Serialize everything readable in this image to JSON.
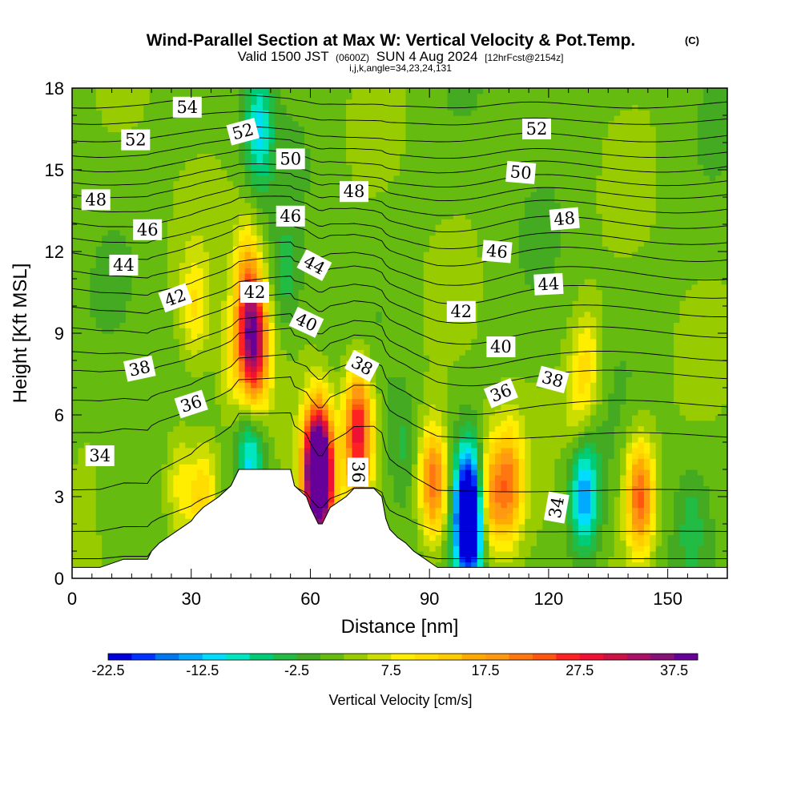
{
  "header": {
    "title": "Wind-Parallel Section at Max W: Vertical Velocity & Pot.Temp.",
    "copyright": "(C)",
    "valid_prefix": "Valid 1500 JST",
    "valid_utc": "(0600Z)",
    "valid_date": "SUN 4 Aug 2024",
    "forecast": "[12hrFcst@2154z]",
    "indices": "i,j,k,angle=34,23,24,131"
  },
  "chart_data": {
    "type": "heatmap",
    "title": "Wind-Parallel Section at Max W: Vertical Velocity & Pot.Temp.",
    "xlabel": "Distance [nm]",
    "ylabel": "Height [Kft MSL]",
    "xlim": [
      0,
      165
    ],
    "ylim": [
      0,
      18
    ],
    "x_ticks": [
      0,
      30,
      60,
      90,
      120,
      150
    ],
    "y_ticks": [
      0,
      3,
      6,
      9,
      12,
      15,
      18
    ],
    "colorbar": {
      "title": "Vertical Velocity [cm/s]",
      "levels": [
        -22.5,
        -20,
        -17.5,
        -15,
        -12.5,
        -10,
        -7.5,
        -5,
        -2.5,
        0,
        2.5,
        5,
        7.5,
        10,
        12.5,
        15,
        17.5,
        20,
        22.5,
        25,
        27.5,
        30,
        32.5,
        35,
        37.5,
        40
      ],
      "tick_labels": [
        "-22.5",
        "-12.5",
        "-2.5",
        "7.5",
        "17.5",
        "27.5",
        "37.5"
      ],
      "tick_values": [
        -22.5,
        -12.5,
        -2.5,
        7.5,
        17.5,
        27.5,
        37.5
      ],
      "colors": [
        "#0000dd",
        "#0033ff",
        "#0077ee",
        "#00aaff",
        "#00ddff",
        "#00e6c0",
        "#00cc77",
        "#22bb44",
        "#44aa22",
        "#66bb11",
        "#99cc00",
        "#ccdd00",
        "#ffee00",
        "#ffdd00",
        "#ffcc00",
        "#ffaa00",
        "#ff9911",
        "#ff7711",
        "#ff5511",
        "#ff2222",
        "#ee1133",
        "#cc1144",
        "#aa1166",
        "#881177",
        "#660099"
      ]
    },
    "background_w": 1.5,
    "w_features": [
      {
        "x": 45,
        "y": 9.5,
        "w": 22
      },
      {
        "x": 46,
        "y": 8.0,
        "w": 20
      },
      {
        "x": 44,
        "y": 11.5,
        "w": 8
      },
      {
        "x": 40,
        "y": 8.0,
        "w": 6
      },
      {
        "x": 31,
        "y": 10.0,
        "w": 8
      },
      {
        "x": 33,
        "y": 3.0,
        "w": 12
      },
      {
        "x": 27,
        "y": 3.5,
        "w": 8
      },
      {
        "x": 62,
        "y": 4.5,
        "w": 38
      },
      {
        "x": 62,
        "y": 3.0,
        "w": 30
      },
      {
        "x": 72,
        "y": 6.0,
        "w": 18
      },
      {
        "x": 72,
        "y": 4.5,
        "w": 14
      },
      {
        "x": 91,
        "y": 3.5,
        "w": 22
      },
      {
        "x": 110,
        "y": 3.5,
        "w": 17
      },
      {
        "x": 105,
        "y": 3.0,
        "w": 15
      },
      {
        "x": 143,
        "y": 3.0,
        "w": 22
      },
      {
        "x": 130,
        "y": 8.0,
        "w": 8
      },
      {
        "x": 127,
        "y": 6.5,
        "w": 6
      },
      {
        "x": 100,
        "y": 3.0,
        "w": -22
      },
      {
        "x": 100,
        "y": 1.5,
        "w": -20
      },
      {
        "x": 129,
        "y": 3.0,
        "w": -16
      },
      {
        "x": 45,
        "y": 4.5,
        "w": -14
      },
      {
        "x": 47,
        "y": 16.5,
        "w": -12
      },
      {
        "x": 54,
        "y": 11.0,
        "w": -5
      },
      {
        "x": 83,
        "y": 5.0,
        "w": -4
      },
      {
        "x": 156,
        "y": 2.0,
        "w": -4
      },
      {
        "x": 10,
        "y": 3.0,
        "w": -3
      }
    ],
    "terrain": {
      "x": [
        0,
        7,
        13,
        19,
        20,
        22,
        25,
        28,
        30,
        31,
        33,
        35,
        37,
        40,
        42,
        49,
        55,
        56,
        59,
        60,
        62,
        63,
        65,
        69,
        71,
        76,
        78,
        79,
        80,
        82,
        84,
        86,
        88,
        92,
        165
      ],
      "height": [
        0.4,
        0.4,
        0.7,
        0.7,
        1.0,
        1.3,
        1.6,
        1.9,
        2.1,
        2.3,
        2.6,
        2.8,
        3.0,
        3.4,
        4.0,
        4.0,
        4.0,
        3.4,
        3.0,
        2.6,
        2.0,
        2.0,
        2.6,
        3.0,
        3.3,
        3.3,
        3.0,
        2.2,
        1.8,
        1.5,
        1.3,
        1.0,
        0.8,
        0.4,
        0.4
      ]
    },
    "theta_contours": [
      {
        "theta": 33,
        "h": 0.6,
        "terrain": 0.3,
        "wave": 0.0
      },
      {
        "theta": 34,
        "h": 1.5,
        "terrain": 0.55,
        "wave": 0.05
      },
      {
        "theta": 35,
        "h": 2.9,
        "terrain": 0.8,
        "wave": 0.1
      },
      {
        "theta": 36,
        "h": 5.0,
        "terrain": 0.6,
        "wave": 0.15
      },
      {
        "theta": 37,
        "h": 6.2,
        "terrain": 0.5,
        "wave": 0.15
      },
      {
        "theta": 38,
        "h": 7.3,
        "terrain": 0.45,
        "wave": 0.15
      },
      {
        "theta": 39,
        "h": 8.0,
        "terrain": 0.4,
        "wave": 0.15
      },
      {
        "theta": 40,
        "h": 8.9,
        "terrain": 0.35,
        "wave": 0.15
      },
      {
        "theta": 41,
        "h": 9.7,
        "terrain": 0.3,
        "wave": 0.15
      },
      {
        "theta": 42,
        "h": 10.4,
        "terrain": 0.3,
        "wave": 0.15
      },
      {
        "theta": 43,
        "h": 11.1,
        "terrain": 0.25,
        "wave": 0.15
      },
      {
        "theta": 44,
        "h": 11.8,
        "terrain": 0.25,
        "wave": 0.15
      },
      {
        "theta": 45,
        "h": 12.4,
        "terrain": 0.2,
        "wave": 0.12
      },
      {
        "theta": 46,
        "h": 13.0,
        "terrain": 0.2,
        "wave": 0.12
      },
      {
        "theta": 47,
        "h": 13.6,
        "terrain": 0.15,
        "wave": 0.12
      },
      {
        "theta": 48,
        "h": 14.1,
        "terrain": 0.15,
        "wave": 0.1
      },
      {
        "theta": 49,
        "h": 14.6,
        "terrain": 0.1,
        "wave": 0.1
      },
      {
        "theta": 50,
        "h": 15.1,
        "terrain": 0.1,
        "wave": 0.1
      },
      {
        "theta": 51,
        "h": 15.6,
        "terrain": 0.1,
        "wave": 0.08
      },
      {
        "theta": 52,
        "h": 16.2,
        "terrain": 0.05,
        "wave": 0.08
      },
      {
        "theta": 53,
        "h": 16.8,
        "terrain": 0.05,
        "wave": 0.06
      },
      {
        "theta": 54,
        "h": 17.4,
        "terrain": 0.05,
        "wave": 0.06
      }
    ],
    "contour_labels": [
      {
        "text": "54",
        "x": 29,
        "y": 17.3,
        "rot": 0
      },
      {
        "text": "52",
        "x": 16,
        "y": 16.1,
        "rot": 0
      },
      {
        "text": "52",
        "x": 43,
        "y": 16.4,
        "rot": -15
      },
      {
        "text": "52",
        "x": 117,
        "y": 16.5,
        "rot": 0
      },
      {
        "text": "50",
        "x": 55,
        "y": 15.4,
        "rot": 0
      },
      {
        "text": "50",
        "x": 113,
        "y": 14.9,
        "rot": 5
      },
      {
        "text": "48",
        "x": 6,
        "y": 13.9,
        "rot": 0
      },
      {
        "text": "48",
        "x": 71,
        "y": 14.2,
        "rot": 0
      },
      {
        "text": "48",
        "x": 124,
        "y": 13.2,
        "rot": -5
      },
      {
        "text": "46",
        "x": 19,
        "y": 12.8,
        "rot": 0
      },
      {
        "text": "46",
        "x": 55,
        "y": 13.3,
        "rot": 0
      },
      {
        "text": "46",
        "x": 107,
        "y": 12.0,
        "rot": 5
      },
      {
        "text": "44",
        "x": 13,
        "y": 11.5,
        "rot": 0
      },
      {
        "text": "44",
        "x": 61,
        "y": 11.5,
        "rot": 28
      },
      {
        "text": "44",
        "x": 120,
        "y": 10.8,
        "rot": -3
      },
      {
        "text": "42",
        "x": 26,
        "y": 10.3,
        "rot": -20
      },
      {
        "text": "42",
        "x": 46,
        "y": 10.5,
        "rot": 0
      },
      {
        "text": "42",
        "x": 98,
        "y": 9.8,
        "rot": 0
      },
      {
        "text": "40",
        "x": 59,
        "y": 9.4,
        "rot": 25
      },
      {
        "text": "40",
        "x": 108,
        "y": 8.5,
        "rot": 0
      },
      {
        "text": "38",
        "x": 17,
        "y": 7.7,
        "rot": -12
      },
      {
        "text": "38",
        "x": 73,
        "y": 7.8,
        "rot": 28
      },
      {
        "text": "38",
        "x": 121,
        "y": 7.3,
        "rot": 15
      },
      {
        "text": "36",
        "x": 30,
        "y": 6.4,
        "rot": -18
      },
      {
        "text": "36",
        "x": 108,
        "y": 6.8,
        "rot": -22
      },
      {
        "text": "36",
        "x": 72,
        "y": 3.9,
        "rot": 90
      },
      {
        "text": "34",
        "x": 7,
        "y": 4.5,
        "rot": 0
      },
      {
        "text": "34",
        "x": 122,
        "y": 2.6,
        "rot": -80
      }
    ]
  }
}
